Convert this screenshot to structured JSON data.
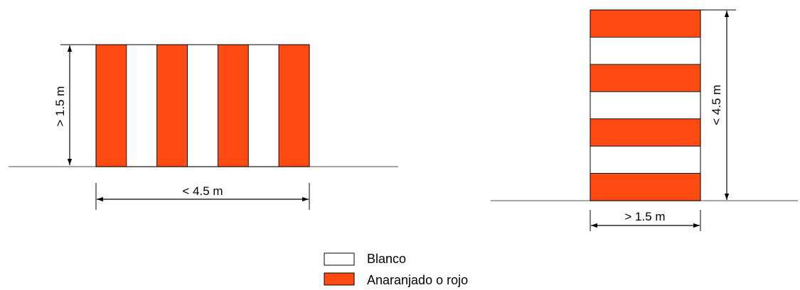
{
  "colors": {
    "white": "#ffffff",
    "red": "#ff4a12",
    "stroke": "#000000",
    "ground": "#8a8a8a",
    "line": "#000000"
  },
  "left_panel": {
    "height_label": "> 1.5 m",
    "width_label": "< 4.5 m",
    "stripe_pattern": [
      "red",
      "white",
      "red",
      "white",
      "red",
      "white",
      "red"
    ]
  },
  "right_panel": {
    "height_label": "< 4.5 m",
    "width_label": "> 1.5 m",
    "stripe_pattern": [
      "red",
      "white",
      "red",
      "white",
      "red",
      "white",
      "red"
    ]
  },
  "legend": {
    "items": [
      {
        "label": "Blanco",
        "color": "white"
      },
      {
        "label": "Anaranjado o rojo",
        "color": "red"
      }
    ]
  }
}
